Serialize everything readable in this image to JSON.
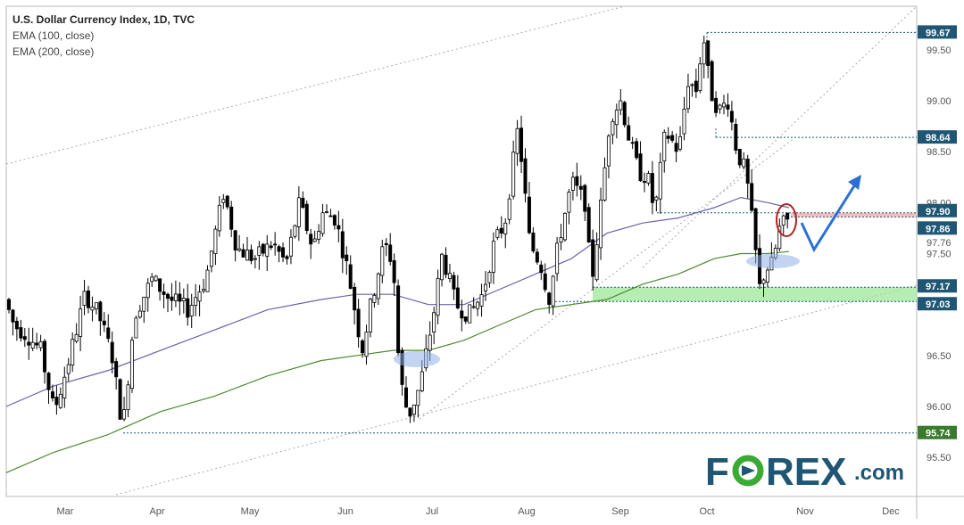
{
  "chart_data": {
    "type": "candlestick",
    "title": "U.S. Dollar Currency Index, 1D, TVC",
    "indicators": [
      "EMA (100, close)",
      "EMA (200, close)"
    ],
    "x_ticks": [
      "Mar",
      "Apr",
      "May",
      "Jun",
      "Jul",
      "Aug",
      "Sep",
      "Oct",
      "Nov",
      "Dec"
    ],
    "y_ticks": [
      "95.50",
      "96.00",
      "96.50",
      "97.00",
      "97.50",
      "98.00",
      "98.50",
      "99.00",
      "99.50"
    ],
    "ylim": [
      95.2,
      99.8
    ],
    "levels": [
      {
        "value": 99.67,
        "label": "99.67"
      },
      {
        "value": 98.64,
        "label": "98.64"
      },
      {
        "value": 97.9,
        "label": "97.90"
      },
      {
        "value": 97.86,
        "label": "97.86"
      },
      {
        "value": 97.76,
        "label": "97.76"
      },
      {
        "value": 97.17,
        "label": "97.17"
      },
      {
        "value": 97.03,
        "label": "97.03"
      },
      {
        "value": 95.74,
        "label": "95.74"
      }
    ],
    "support_zone": [
      97.03,
      97.17
    ],
    "resistance_zone": [
      97.86,
      97.9
    ],
    "grid": false,
    "legend": "top-left"
  },
  "logo": {
    "brand": "FOREX",
    "suffix": ".com",
    "colors": {
      "dark": "#1f5673",
      "green": "#3aaa35"
    }
  },
  "colors": {
    "up": "#ffffff",
    "down": "#000000",
    "ema100": "#6a63a8",
    "ema200": "#4e8a2f",
    "level": "#1f5673",
    "arrow": "#2a6fd6"
  }
}
